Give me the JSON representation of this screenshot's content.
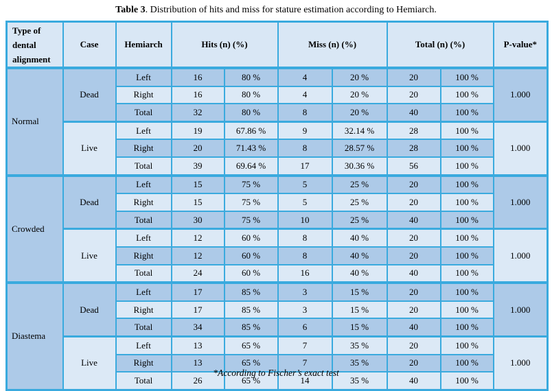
{
  "page": {
    "title_bold": "Table 3",
    "title_rest": ". Distribution of hits and miss for stature estimation according to Hemiarch.",
    "footnote": "*According to Fischer’s exact test"
  },
  "colors": {
    "border_cyan": "#3aaade",
    "row_dark": "#adcae8",
    "row_light": "#dce9f6",
    "header_bg": "#d9e7f5",
    "text": "#000000"
  },
  "table": {
    "columns": {
      "type": "Type of dental alignment",
      "case": "Case",
      "hemiarch": "Hemiarch",
      "hits": "Hits (n) (%)",
      "miss": "Miss (n) (%)",
      "total": "Total (n) (%)",
      "p_value": "P-value*"
    },
    "sections": [
      {
        "type": "Normal",
        "groups": [
          {
            "case": "Dead",
            "p_value": "1.000",
            "rows": [
              {
                "hemiarch": "Left",
                "hits_n": "16",
                "hits_pct": "80 %",
                "miss_n": "4",
                "miss_pct": "20 %",
                "total_n": "20",
                "total_pct": "100 %"
              },
              {
                "hemiarch": "Right",
                "hits_n": "16",
                "hits_pct": "80 %",
                "miss_n": "4",
                "miss_pct": "20 %",
                "total_n": "20",
                "total_pct": "100 %"
              },
              {
                "hemiarch": "Total",
                "hits_n": "32",
                "hits_pct": "80 %",
                "miss_n": "8",
                "miss_pct": "20 %",
                "total_n": "40",
                "total_pct": "100 %"
              }
            ]
          },
          {
            "case": "Live",
            "p_value": "1.000",
            "rows": [
              {
                "hemiarch": "Left",
                "hits_n": "19",
                "hits_pct": "67.86 %",
                "miss_n": "9",
                "miss_pct": "32.14 %",
                "total_n": "28",
                "total_pct": "100 %"
              },
              {
                "hemiarch": "Right",
                "hits_n": "20",
                "hits_pct": "71.43 %",
                "miss_n": "8",
                "miss_pct": "28.57 %",
                "total_n": "28",
                "total_pct": "100 %"
              },
              {
                "hemiarch": "Total",
                "hits_n": "39",
                "hits_pct": "69.64 %",
                "miss_n": "17",
                "miss_pct": "30.36 %",
                "total_n": "56",
                "total_pct": "100 %"
              }
            ]
          }
        ]
      },
      {
        "type": "Crowded",
        "groups": [
          {
            "case": "Dead",
            "p_value": "1.000",
            "rows": [
              {
                "hemiarch": "Left",
                "hits_n": "15",
                "hits_pct": "75 %",
                "miss_n": "5",
                "miss_pct": "25 %",
                "total_n": "20",
                "total_pct": "100 %"
              },
              {
                "hemiarch": "Right",
                "hits_n": "15",
                "hits_pct": "75 %",
                "miss_n": "5",
                "miss_pct": "25 %",
                "total_n": "20",
                "total_pct": "100 %"
              },
              {
                "hemiarch": "Total",
                "hits_n": "30",
                "hits_pct": "75 %",
                "miss_n": "10",
                "miss_pct": "25 %",
                "total_n": "40",
                "total_pct": "100 %"
              }
            ]
          },
          {
            "case": "Live",
            "p_value": "1.000",
            "rows": [
              {
                "hemiarch": "Left",
                "hits_n": "12",
                "hits_pct": "60 %",
                "miss_n": "8",
                "miss_pct": "40 %",
                "total_n": "20",
                "total_pct": "100 %"
              },
              {
                "hemiarch": "Right",
                "hits_n": "12",
                "hits_pct": "60 %",
                "miss_n": "8",
                "miss_pct": "40 %",
                "total_n": "20",
                "total_pct": "100 %"
              },
              {
                "hemiarch": "Total",
                "hits_n": "24",
                "hits_pct": "60 %",
                "miss_n": "16",
                "miss_pct": "40 %",
                "total_n": "40",
                "total_pct": "100 %"
              }
            ]
          }
        ]
      },
      {
        "type": "Diastema",
        "groups": [
          {
            "case": "Dead",
            "p_value": "1.000",
            "rows": [
              {
                "hemiarch": "Left",
                "hits_n": "17",
                "hits_pct": "85 %",
                "miss_n": "3",
                "miss_pct": "15 %",
                "total_n": "20",
                "total_pct": "100 %"
              },
              {
                "hemiarch": "Right",
                "hits_n": "17",
                "hits_pct": "85 %",
                "miss_n": "3",
                "miss_pct": "15 %",
                "total_n": "20",
                "total_pct": "100 %"
              },
              {
                "hemiarch": "Total",
                "hits_n": "34",
                "hits_pct": "85 %",
                "miss_n": "6",
                "miss_pct": "15 %",
                "total_n": "40",
                "total_pct": "100 %"
              }
            ]
          },
          {
            "case": "Live",
            "p_value": "1.000",
            "rows": [
              {
                "hemiarch": "Left",
                "hits_n": "13",
                "hits_pct": "65 %",
                "miss_n": "7",
                "miss_pct": "35 %",
                "total_n": "20",
                "total_pct": "100 %"
              },
              {
                "hemiarch": "Right",
                "hits_n": "13",
                "hits_pct": "65 %",
                "miss_n": "7",
                "miss_pct": "35 %",
                "total_n": "20",
                "total_pct": "100 %"
              },
              {
                "hemiarch": "Total",
                "hits_n": "26",
                "hits_pct": "65 %",
                "miss_n": "14",
                "miss_pct": "35 %",
                "total_n": "40",
                "total_pct": "100 %"
              }
            ]
          }
        ]
      }
    ]
  }
}
